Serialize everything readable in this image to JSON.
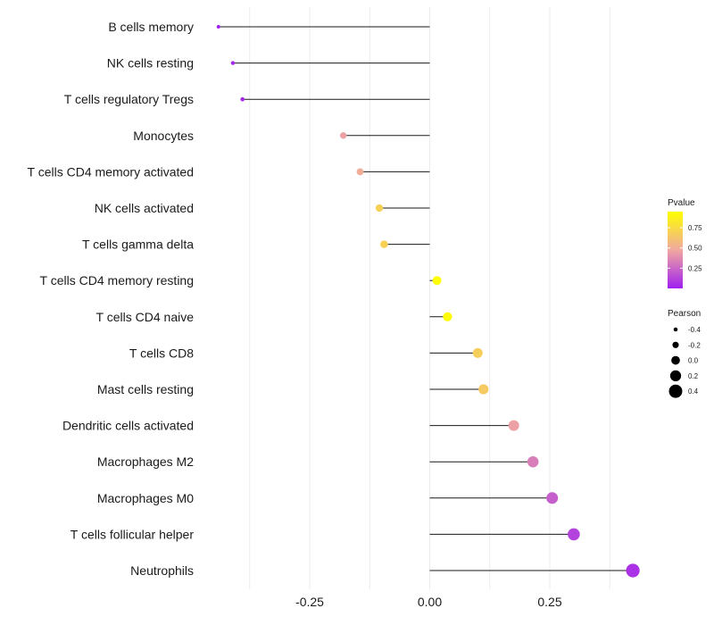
{
  "chart_data": {
    "type": "lollipop",
    "title": "",
    "xlabel": "",
    "ylabel": "",
    "xlim": [
      -0.5,
      0.47
    ],
    "x_ticks": [
      -0.25,
      0.0,
      0.25
    ],
    "x_tick_labels": [
      "-0.25",
      "0.00",
      "0.25"
    ],
    "grid": true,
    "categories": [
      "B cells memory",
      "NK cells resting",
      "T cells regulatory  Tregs",
      "Monocytes",
      "T cells CD4 memory activated",
      "NK cells activated",
      "T cells gamma delta",
      "T cells CD4 memory resting",
      "T cells CD4 naive",
      "T cells CD8",
      "Mast cells resting",
      "Dendritic cells activated",
      "Macrophages M2",
      "Macrophages M0",
      "T cells follicular helper",
      "Neutrophils"
    ],
    "values": [
      -0.44,
      -0.41,
      -0.39,
      -0.18,
      -0.145,
      -0.105,
      -0.095,
      0.015,
      0.037,
      0.1,
      0.112,
      0.175,
      0.215,
      0.255,
      0.3,
      0.423
    ],
    "pvalues": [
      0.0,
      0.02,
      0.03,
      0.45,
      0.5,
      0.7,
      0.7,
      0.95,
      0.93,
      0.68,
      0.66,
      0.45,
      0.33,
      0.22,
      0.12,
      0.06
    ],
    "legend": {
      "position": "right",
      "color": {
        "title": "Pvalue",
        "ticks": [
          0.25,
          0.5,
          0.75
        ],
        "tick_labels": [
          "0.25",
          "0.50",
          "0.75"
        ],
        "range": [
          0.0,
          0.95
        ],
        "low_color": "#a020f0",
        "mid_color": "#f0a8a0",
        "high_color": "#ffff00"
      },
      "size": {
        "title": "Pearson",
        "values": [
          -0.4,
          -0.2,
          0.0,
          0.2,
          0.4
        ],
        "labels": [
          "-0.4",
          "-0.2",
          "0.0",
          "0.2",
          "0.4"
        ]
      }
    },
    "colors": {
      "stem": "#1a1a1a",
      "grid": "#ebebeb",
      "text": "#1a1a1a"
    }
  }
}
